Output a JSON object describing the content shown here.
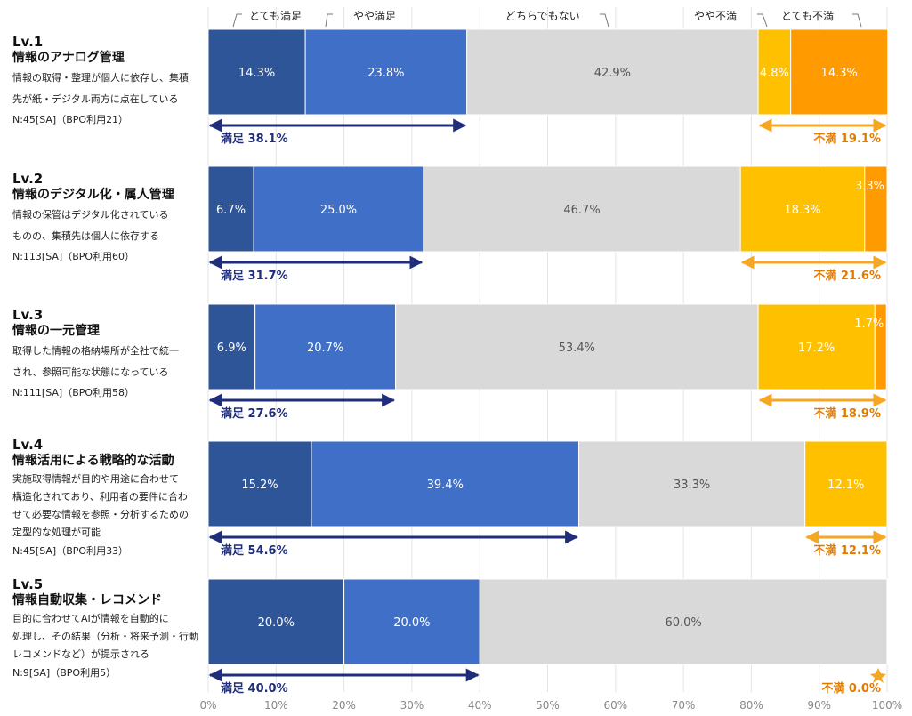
{
  "chart_data": {
    "type": "bar",
    "orientation": "horizontal",
    "stacked": true,
    "legend_position": "top",
    "colors": {
      "とても満足": "#2E5597",
      "やや満足": "#3F6FC6",
      "どちらでもない": "#D9D9D9",
      "やや不満": "#FFC000",
      "とても不満": "#FF9A00",
      "satisfied_arrow": "#1F2D7A",
      "dissatisfied_arrow": "#F5A623",
      "satisfied_text": "#1F2D7A",
      "dissatisfied_text": "#E07B00"
    },
    "series_names": [
      "とても満足",
      "やや満足",
      "どちらでもない",
      "やや不満",
      "とても不満"
    ],
    "xlim": [
      0,
      100
    ],
    "x_ticks": [
      "0%",
      "10%",
      "20%",
      "30%",
      "40%",
      "50%",
      "60%",
      "70%",
      "80%",
      "90%",
      "100%"
    ],
    "satisfied_label": "満足",
    "dissatisfied_label": "不満",
    "rows": [
      {
        "level": "Lv.1",
        "title": "情報のアナログ管理",
        "description": [
          "情報の取得・整理が個人に依存し、集積",
          "先が紙・デジタル両方に点在している"
        ],
        "n": "N:45[SA]（BPO利用21）",
        "values": [
          14.3,
          23.8,
          42.9,
          4.8,
          14.3
        ],
        "labels": [
          "14.3%",
          "23.8%",
          "42.9%",
          "4.8%",
          "14.3%"
        ],
        "satisfied_total": "38.1%",
        "dissatisfied_total": "19.1%"
      },
      {
        "level": "Lv.2",
        "title": "情報のデジタル化・属人管理",
        "description": [
          "情報の保管はデジタル化されている",
          "ものの、集積先は個人に依存する"
        ],
        "n": "N:113[SA]（BPO利用60）",
        "values": [
          6.7,
          25.0,
          46.7,
          18.3,
          3.3
        ],
        "labels": [
          "6.7%",
          "25.0%",
          "46.7%",
          "18.3%",
          "3.3%"
        ],
        "satisfied_total": "31.7%",
        "dissatisfied_total": "21.6%"
      },
      {
        "level": "Lv.3",
        "title": "情報の一元管理",
        "description": [
          "取得した情報の格納場所が全社で統一",
          "され、参照可能な状態になっている"
        ],
        "n": "N:111[SA]（BPO利用58）",
        "values": [
          6.9,
          20.7,
          53.4,
          17.2,
          1.7
        ],
        "labels": [
          "6.9%",
          "20.7%",
          "53.4%",
          "17.2%",
          "1.7%"
        ],
        "satisfied_total": "27.6%",
        "dissatisfied_total": "18.9%"
      },
      {
        "level": "Lv.4",
        "title": "情報活用による戦略的な活動",
        "description": [
          "実施取得情報が目的や用途に合わせて",
          "構造化されており、利用者の要件に合わ",
          "せて必要な情報を参照・分析するための",
          "定型的な処理が可能"
        ],
        "n": "N:45[SA]（BPO利用33）",
        "values": [
          15.2,
          39.4,
          33.3,
          12.1,
          0
        ],
        "labels": [
          "15.2%",
          "39.4%",
          "33.3%",
          "12.1%",
          ""
        ],
        "satisfied_total": "54.6%",
        "dissatisfied_total": "12.1%"
      },
      {
        "level": "Lv.5",
        "title": "情報自動収集・レコメンド",
        "description": [
          "目的に合わせてAIが情報を自動的に",
          "処理し、その結果（分析・将来予測・行動",
          "レコメンドなど）が提示される"
        ],
        "n": "N:9[SA]（BPO利用5）",
        "values": [
          20.0,
          20.0,
          60.0,
          0,
          0
        ],
        "labels": [
          "20.0%",
          "20.0%",
          "60.0%",
          "",
          ""
        ],
        "satisfied_total": "40.0%",
        "dissatisfied_total": "0.0%"
      }
    ]
  }
}
